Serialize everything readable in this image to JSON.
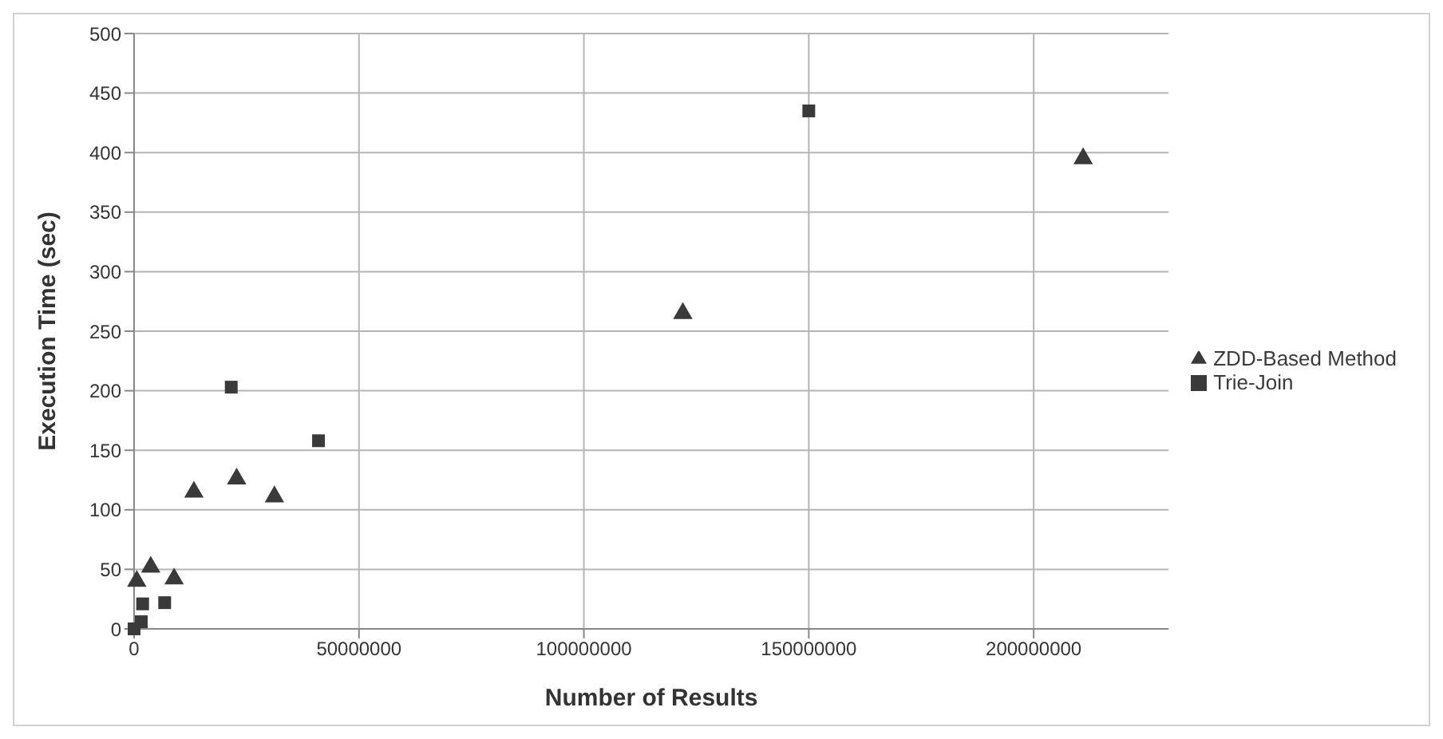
{
  "chart_data": {
    "type": "scatter",
    "xlabel": "Number of Results",
    "ylabel": "Execution Time (sec)",
    "xlim": [
      0,
      230000000
    ],
    "xticks": [
      0,
      50000000,
      100000000,
      150000000,
      200000000
    ],
    "ylim": [
      0,
      500
    ],
    "yticks": [
      0,
      50,
      100,
      150,
      200,
      250,
      300,
      350,
      400,
      450,
      500
    ],
    "grid": true,
    "legend": "right",
    "series": [
      {
        "name": "ZDD-Based Method",
        "color": "#3a3a3a",
        "marker": "triangle",
        "x": [
          600000,
          3700000,
          8900000,
          13300000,
          22800000,
          31200000,
          122000000,
          211000000
        ],
        "values": [
          40,
          52,
          42,
          115,
          126,
          111,
          265,
          395
        ]
      },
      {
        "name": "Trie-Join",
        "color": "#3a3a3a",
        "marker": "square",
        "x": [
          0,
          1600000,
          1900000,
          6800000,
          21600000,
          41000000,
          150000000
        ],
        "values": [
          0,
          6,
          21,
          22,
          203,
          158,
          435
        ]
      }
    ]
  }
}
